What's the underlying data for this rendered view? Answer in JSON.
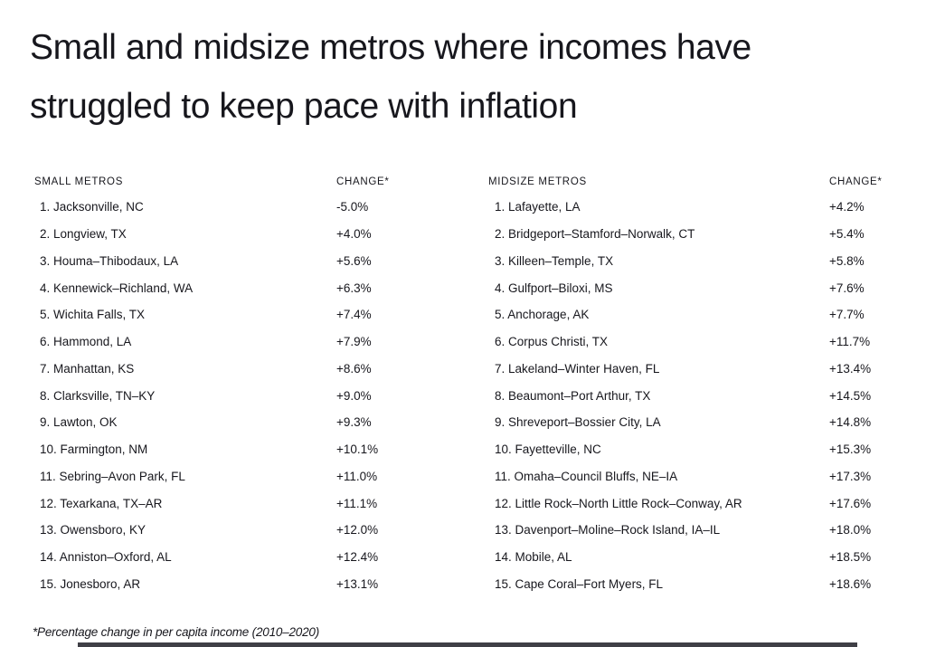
{
  "title_lines": [
    "Small and midsize metros where incomes have",
    "struggled to keep pace with inflation"
  ],
  "footnote": "*Percentage change in per capita income (2010–2020)",
  "colors": {
    "background": "#ffffff",
    "text_primary": "#17171d",
    "footer_bar": "#3f3f46"
  },
  "chart_data": {
    "type": "table",
    "title": "Small and midsize metros where incomes have struggled to keep pace with inflation",
    "footnote": "*Percentage change in per capita income (2010–2020)",
    "value_unit": "percent change in per capita income, 2010–2020",
    "tables": [
      {
        "columns": [
          "SMALL METROS",
          "CHANGE*"
        ],
        "rows": [
          [
            "Jacksonville, NC",
            -5.0
          ],
          [
            "Longview, TX",
            4.0
          ],
          [
            "Houma–Thibodaux, LA",
            5.6
          ],
          [
            "Kennewick–Richland, WA",
            6.3
          ],
          [
            "Wichita Falls, TX",
            7.4
          ],
          [
            "Hammond, LA",
            7.9
          ],
          [
            "Manhattan, KS",
            8.6
          ],
          [
            "Clarksville, TN–KY",
            9.0
          ],
          [
            "Lawton, OK",
            9.3
          ],
          [
            "Farmington, NM",
            10.1
          ],
          [
            "Sebring–Avon Park, FL",
            11.0
          ],
          [
            "Texarkana, TX–AR",
            11.1
          ],
          [
            "Owensboro, KY",
            12.0
          ],
          [
            "Anniston–Oxford, AL",
            12.4
          ],
          [
            "Jonesboro, AR",
            13.1
          ]
        ]
      },
      {
        "columns": [
          "MIDSIZE METROS",
          "CHANGE*"
        ],
        "rows": [
          [
            "Lafayette, LA",
            4.2
          ],
          [
            "Bridgeport–Stamford–Norwalk, CT",
            5.4
          ],
          [
            "Killeen–Temple, TX",
            5.8
          ],
          [
            "Gulfport–Biloxi, MS",
            7.6
          ],
          [
            "Anchorage, AK",
            7.7
          ],
          [
            "Corpus Christi, TX",
            11.7
          ],
          [
            "Lakeland–Winter Haven, FL",
            13.4
          ],
          [
            "Beaumont–Port Arthur, TX",
            14.5
          ],
          [
            "Shreveport–Bossier City, LA",
            14.8
          ],
          [
            "Fayetteville, NC",
            15.3
          ],
          [
            "Omaha–Council Bluffs, NE–IA",
            17.3
          ],
          [
            "Little Rock–North Little Rock–Conway, AR",
            17.6
          ],
          [
            "Davenport–Moline–Rock Island, IA–IL",
            18.0
          ],
          [
            "Mobile, AL",
            18.5
          ],
          [
            "Cape Coral–Fort Myers, FL",
            18.6
          ]
        ]
      }
    ]
  }
}
